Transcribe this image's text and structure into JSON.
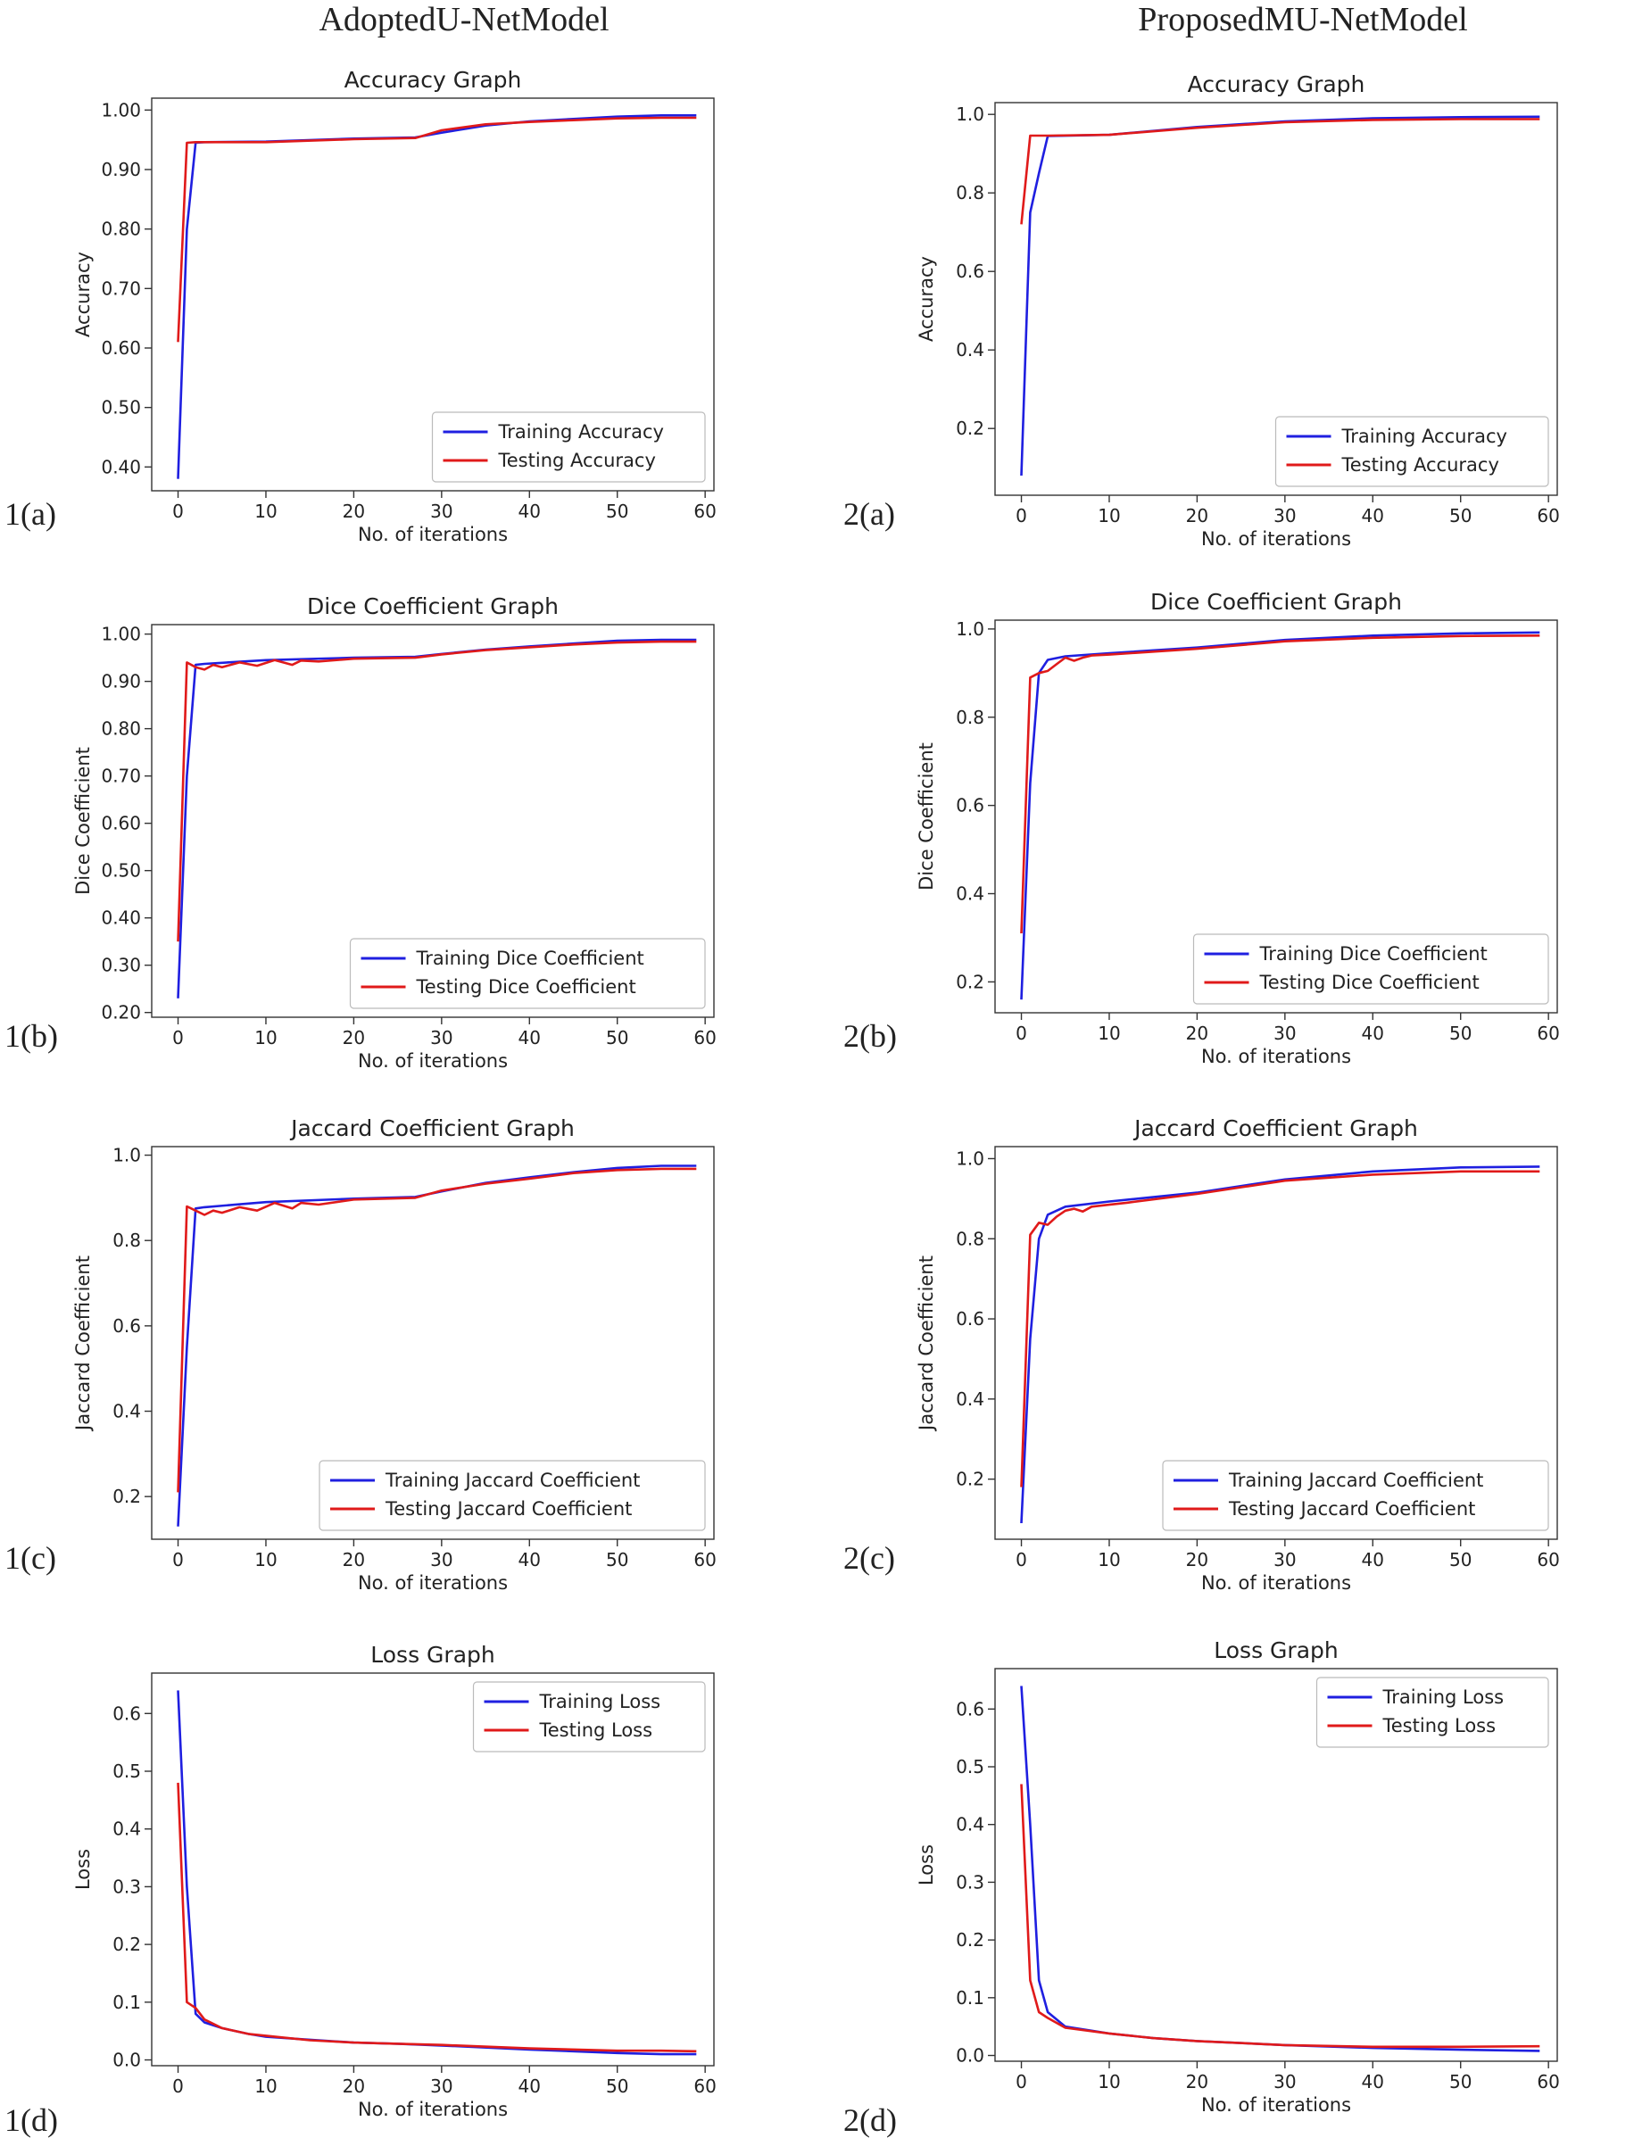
{
  "column_titles": {
    "left": "AdoptedU-NetModel",
    "right": "ProposedMU-NetModel"
  },
  "panel_labels": {
    "1a": "1(a)",
    "2a": "2(a)",
    "1b": "1(b)",
    "2b": "2(b)",
    "1c": "1(c)",
    "2c": "2(c)",
    "1d": "1(d)",
    "2d": "2(d)"
  },
  "chart_data": [
    {
      "id": "1a",
      "type": "line",
      "title": "Accuracy Graph",
      "xlabel": "No. of iterations",
      "ylabel": "Accuracy",
      "xlim": [
        -3,
        61
      ],
      "ylim": [
        0.36,
        1.02
      ],
      "xticks": [
        0,
        10,
        20,
        30,
        40,
        50,
        60
      ],
      "yticks": [
        0.4,
        0.5,
        0.6,
        0.7,
        0.8,
        0.9,
        1.0
      ],
      "legend": "bottom-right",
      "series": [
        {
          "name": "Training Accuracy",
          "color": "#1f1fe0",
          "x": [
            0,
            1,
            2,
            3,
            10,
            20,
            27,
            30,
            35,
            40,
            45,
            50,
            55,
            59
          ],
          "y": [
            0.38,
            0.8,
            0.945,
            0.946,
            0.947,
            0.952,
            0.954,
            0.962,
            0.974,
            0.981,
            0.985,
            0.989,
            0.991,
            0.991
          ]
        },
        {
          "name": "Testing Accuracy",
          "color": "#e01a1a",
          "x": [
            0,
            1,
            2,
            3,
            10,
            20,
            27,
            30,
            35,
            40,
            45,
            50,
            55,
            59
          ],
          "y": [
            0.61,
            0.945,
            0.946,
            0.946,
            0.946,
            0.951,
            0.953,
            0.966,
            0.976,
            0.98,
            0.983,
            0.986,
            0.987,
            0.987
          ]
        }
      ]
    },
    {
      "id": "2a",
      "type": "line",
      "title": "Accuracy Graph",
      "xlabel": "No. of iterations",
      "ylabel": "Accuracy",
      "xlim": [
        -3,
        61
      ],
      "ylim": [
        0.03,
        1.03
      ],
      "xticks": [
        0,
        10,
        20,
        30,
        40,
        50,
        60
      ],
      "yticks": [
        0.2,
        0.4,
        0.6,
        0.8,
        1.0
      ],
      "legend": "bottom-right",
      "series": [
        {
          "name": "Training Accuracy",
          "color": "#1f1fe0",
          "x": [
            0,
            1,
            2,
            3,
            10,
            20,
            30,
            40,
            50,
            59
          ],
          "y": [
            0.08,
            0.75,
            0.85,
            0.945,
            0.948,
            0.968,
            0.982,
            0.99,
            0.993,
            0.994
          ]
        },
        {
          "name": "Testing Accuracy",
          "color": "#e01a1a",
          "x": [
            0,
            1,
            2,
            3,
            10,
            20,
            30,
            40,
            50,
            59
          ],
          "y": [
            0.72,
            0.946,
            0.946,
            0.946,
            0.948,
            0.966,
            0.98,
            0.986,
            0.988,
            0.988
          ]
        }
      ]
    },
    {
      "id": "1b",
      "type": "line",
      "title": "Dice Coefficient Graph",
      "xlabel": "No. of iterations",
      "ylabel": "Dice Coefficient",
      "xlim": [
        -3,
        61
      ],
      "ylim": [
        0.19,
        1.02
      ],
      "xticks": [
        0,
        10,
        20,
        30,
        40,
        50,
        60
      ],
      "yticks": [
        0.2,
        0.3,
        0.4,
        0.5,
        0.6,
        0.7,
        0.8,
        0.9,
        1.0
      ],
      "legend": "bottom-right",
      "series": [
        {
          "name": "Training Dice Coefficient",
          "color": "#1f1fe0",
          "x": [
            0,
            1,
            2,
            3,
            10,
            20,
            27,
            30,
            35,
            40,
            45,
            50,
            55,
            59
          ],
          "y": [
            0.23,
            0.7,
            0.935,
            0.937,
            0.945,
            0.95,
            0.952,
            0.958,
            0.967,
            0.974,
            0.98,
            0.986,
            0.988,
            0.988
          ]
        },
        {
          "name": "Testing Dice Coefficient",
          "color": "#e01a1a",
          "x": [
            0,
            1,
            2,
            3,
            4,
            5,
            7,
            9,
            11,
            13,
            14,
            16,
            20,
            27,
            30,
            35,
            40,
            45,
            50,
            55,
            59
          ],
          "y": [
            0.35,
            0.94,
            0.93,
            0.925,
            0.935,
            0.93,
            0.94,
            0.933,
            0.945,
            0.935,
            0.944,
            0.942,
            0.948,
            0.95,
            0.957,
            0.966,
            0.972,
            0.978,
            0.982,
            0.984,
            0.984
          ]
        }
      ]
    },
    {
      "id": "2b",
      "type": "line",
      "title": "Dice Coefficient Graph",
      "xlabel": "No. of iterations",
      "ylabel": "Dice Coefficient",
      "xlim": [
        -3,
        61
      ],
      "ylim": [
        0.13,
        1.02
      ],
      "xticks": [
        0,
        10,
        20,
        30,
        40,
        50,
        60
      ],
      "yticks": [
        0.2,
        0.4,
        0.6,
        0.8,
        1.0
      ],
      "legend": "bottom-right",
      "series": [
        {
          "name": "Training Dice Coefficient",
          "color": "#1f1fe0",
          "x": [
            0,
            1,
            2,
            3,
            5,
            10,
            20,
            30,
            40,
            50,
            59
          ],
          "y": [
            0.16,
            0.65,
            0.9,
            0.93,
            0.938,
            0.945,
            0.958,
            0.975,
            0.985,
            0.99,
            0.992
          ]
        },
        {
          "name": "Testing Dice Coefficient",
          "color": "#e01a1a",
          "x": [
            0,
            1,
            2,
            3,
            4,
            5,
            6,
            7,
            8,
            10,
            20,
            30,
            40,
            50,
            59
          ],
          "y": [
            0.31,
            0.89,
            0.9,
            0.905,
            0.92,
            0.935,
            0.928,
            0.935,
            0.94,
            0.942,
            0.955,
            0.972,
            0.98,
            0.984,
            0.985
          ]
        }
      ]
    },
    {
      "id": "1c",
      "type": "line",
      "title": "Jaccard Coefficient Graph",
      "xlabel": "No. of iterations",
      "ylabel": "Jaccard Coefficient",
      "xlim": [
        -3,
        61
      ],
      "ylim": [
        0.1,
        1.02
      ],
      "xticks": [
        0,
        10,
        20,
        30,
        40,
        50,
        60
      ],
      "yticks": [
        0.2,
        0.4,
        0.6,
        0.8,
        1.0
      ],
      "legend": "bottom-right",
      "series": [
        {
          "name": "Training Jaccard Coefficient",
          "color": "#1f1fe0",
          "x": [
            0,
            1,
            2,
            3,
            10,
            20,
            27,
            30,
            35,
            40,
            45,
            50,
            55,
            59
          ],
          "y": [
            0.13,
            0.55,
            0.875,
            0.878,
            0.89,
            0.898,
            0.902,
            0.915,
            0.935,
            0.948,
            0.96,
            0.97,
            0.975,
            0.975
          ]
        },
        {
          "name": "Testing Jaccard Coefficient",
          "color": "#e01a1a",
          "x": [
            0,
            1,
            2,
            3,
            4,
            5,
            7,
            9,
            11,
            13,
            14,
            16,
            20,
            27,
            30,
            35,
            40,
            45,
            50,
            55,
            59
          ],
          "y": [
            0.21,
            0.88,
            0.87,
            0.86,
            0.87,
            0.865,
            0.878,
            0.87,
            0.888,
            0.875,
            0.888,
            0.884,
            0.896,
            0.9,
            0.917,
            0.933,
            0.945,
            0.958,
            0.965,
            0.968,
            0.968
          ]
        }
      ]
    },
    {
      "id": "2c",
      "type": "line",
      "title": "Jaccard Coefficient Graph",
      "xlabel": "No. of iterations",
      "ylabel": "Jaccard Coefficient",
      "xlim": [
        -3,
        61
      ],
      "ylim": [
        0.05,
        1.03
      ],
      "xticks": [
        0,
        10,
        20,
        30,
        40,
        50,
        60
      ],
      "yticks": [
        0.2,
        0.4,
        0.6,
        0.8,
        1.0
      ],
      "legend": "bottom-right",
      "series": [
        {
          "name": "Training Jaccard Coefficient",
          "color": "#1f1fe0",
          "x": [
            0,
            1,
            2,
            3,
            5,
            10,
            20,
            30,
            40,
            50,
            59
          ],
          "y": [
            0.09,
            0.55,
            0.8,
            0.86,
            0.88,
            0.893,
            0.915,
            0.948,
            0.968,
            0.978,
            0.98
          ]
        },
        {
          "name": "Testing Jaccard Coefficient",
          "color": "#e01a1a",
          "x": [
            0,
            1,
            2,
            3,
            4,
            5,
            6,
            7,
            8,
            10,
            12,
            20,
            30,
            40,
            50,
            59
          ],
          "y": [
            0.18,
            0.81,
            0.84,
            0.835,
            0.855,
            0.87,
            0.875,
            0.868,
            0.88,
            0.885,
            0.89,
            0.912,
            0.945,
            0.96,
            0.968,
            0.968
          ]
        }
      ]
    },
    {
      "id": "1d",
      "type": "line",
      "title": "Loss Graph",
      "xlabel": "No. of iterations",
      "ylabel": "Loss",
      "xlim": [
        -3,
        61
      ],
      "ylim": [
        -0.01,
        0.67
      ],
      "xticks": [
        0,
        10,
        20,
        30,
        40,
        50,
        60
      ],
      "yticks": [
        0.0,
        0.1,
        0.2,
        0.3,
        0.4,
        0.5,
        0.6
      ],
      "legend": "top-right",
      "series": [
        {
          "name": "Training Loss",
          "color": "#1f1fe0",
          "x": [
            0,
            1,
            2,
            3,
            5,
            8,
            10,
            15,
            20,
            25,
            30,
            40,
            50,
            55,
            59
          ],
          "y": [
            0.64,
            0.3,
            0.08,
            0.065,
            0.055,
            0.045,
            0.04,
            0.035,
            0.03,
            0.028,
            0.025,
            0.018,
            0.012,
            0.01,
            0.01
          ]
        },
        {
          "name": "Testing Loss",
          "color": "#e01a1a",
          "x": [
            0,
            1,
            2,
            3,
            5,
            8,
            10,
            15,
            20,
            25,
            30,
            40,
            50,
            55,
            59
          ],
          "y": [
            0.48,
            0.1,
            0.09,
            0.07,
            0.055,
            0.045,
            0.042,
            0.034,
            0.03,
            0.028,
            0.026,
            0.02,
            0.016,
            0.016,
            0.015
          ]
        }
      ]
    },
    {
      "id": "2d",
      "type": "line",
      "title": "Loss Graph",
      "xlabel": "No. of iterations",
      "ylabel": "Loss",
      "xlim": [
        -3,
        61
      ],
      "ylim": [
        -0.01,
        0.67
      ],
      "xticks": [
        0,
        10,
        20,
        30,
        40,
        50,
        60
      ],
      "yticks": [
        0.0,
        0.1,
        0.2,
        0.3,
        0.4,
        0.5,
        0.6
      ],
      "legend": "top-right",
      "series": [
        {
          "name": "Training Loss",
          "color": "#1f1fe0",
          "x": [
            0,
            1,
            2,
            3,
            5,
            10,
            15,
            20,
            30,
            40,
            50,
            59
          ],
          "y": [
            0.64,
            0.4,
            0.13,
            0.075,
            0.05,
            0.038,
            0.03,
            0.025,
            0.018,
            0.013,
            0.01,
            0.008
          ]
        },
        {
          "name": "Testing Loss",
          "color": "#e01a1a",
          "x": [
            0,
            1,
            2,
            3,
            5,
            10,
            15,
            20,
            30,
            40,
            50,
            59
          ],
          "y": [
            0.47,
            0.13,
            0.075,
            0.065,
            0.048,
            0.038,
            0.03,
            0.025,
            0.018,
            0.015,
            0.015,
            0.016
          ]
        }
      ]
    }
  ]
}
